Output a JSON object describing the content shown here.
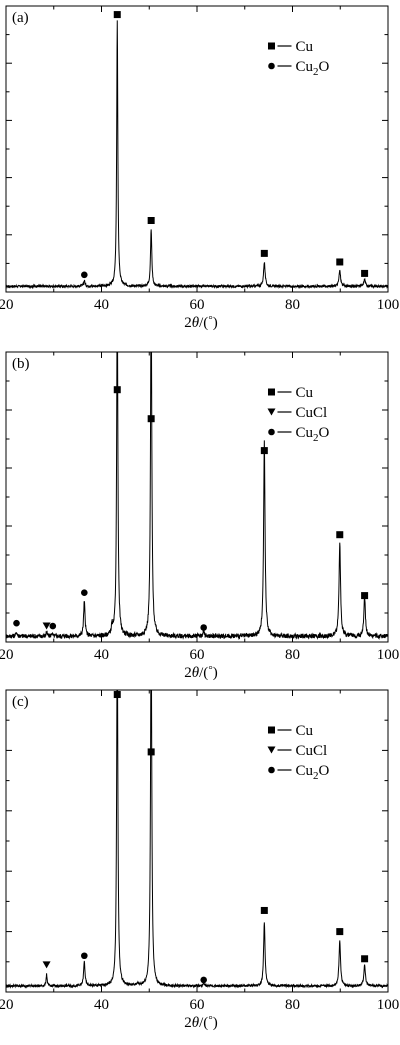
{
  "figure": {
    "colors": {
      "line": "#000000",
      "background": "#ffffff"
    }
  },
  "chart_data": [
    {
      "type": "line",
      "panel_label": "(a)",
      "xlabel": "2θ/(°)",
      "xlabel_parts": {
        "pre": "2",
        "theta": "θ",
        "post": "/(",
        "deg": "°",
        "close": ")"
      },
      "xlim": [
        20,
        100
      ],
      "xticks": [
        "20",
        "40",
        "60",
        "80",
        "100"
      ],
      "ylim": [
        0,
        1
      ],
      "y_axis_labeled": false,
      "grid": false,
      "legend": {
        "placement": "top-right",
        "entries": [
          {
            "marker": "square",
            "label": "Cu",
            "base": "Cu",
            "sub": ""
          },
          {
            "marker": "circle",
            "label": "Cu2O",
            "base": "Cu",
            "sub": "2",
            "tail": "O"
          }
        ]
      },
      "series": [
        {
          "baseline": 0.02,
          "noise": 0.004,
          "peaks": [
            {
              "x": 36.4,
              "h": 0.02,
              "w": 0.35
            },
            {
              "x": 43.3,
              "h": 0.93,
              "w": 0.28
            },
            {
              "x": 50.4,
              "h": 0.2,
              "w": 0.32
            },
            {
              "x": 74.1,
              "h": 0.085,
              "w": 0.38
            },
            {
              "x": 89.9,
              "h": 0.055,
              "w": 0.4
            },
            {
              "x": 95.1,
              "h": 0.025,
              "w": 0.4
            }
          ]
        }
      ],
      "markers": [
        {
          "x": 36.4,
          "y": 0.06,
          "phase": "Cu2O",
          "shape": "circle"
        },
        {
          "x": 43.3,
          "y": 0.97,
          "phase": "Cu",
          "shape": "square"
        },
        {
          "x": 50.4,
          "y": 0.25,
          "phase": "Cu",
          "shape": "square"
        },
        {
          "x": 74.1,
          "y": 0.135,
          "phase": "Cu",
          "shape": "square"
        },
        {
          "x": 89.9,
          "y": 0.105,
          "phase": "Cu",
          "shape": "square"
        },
        {
          "x": 95.1,
          "y": 0.065,
          "phase": "Cu",
          "shape": "square"
        }
      ]
    },
    {
      "type": "line",
      "panel_label": "(b)",
      "xlabel": "2θ/(°)",
      "xlabel_parts": {
        "pre": "2",
        "theta": "θ",
        "post": "/(",
        "deg": "°",
        "close": ")"
      },
      "xlim": [
        20,
        100
      ],
      "xticks": [
        "20",
        "40",
        "60",
        "80",
        "100"
      ],
      "ylim": [
        0,
        1
      ],
      "y_axis_labeled": false,
      "grid": false,
      "legend": {
        "placement": "top-right",
        "entries": [
          {
            "marker": "square",
            "label": "Cu",
            "base": "Cu",
            "sub": ""
          },
          {
            "marker": "triangle-down",
            "label": "CuCl",
            "base": "CuCl",
            "sub": ""
          },
          {
            "marker": "circle",
            "label": "Cu2O",
            "base": "Cu",
            "sub": "2",
            "tail": "O"
          }
        ]
      },
      "series": [
        {
          "baseline": 0.02,
          "noise": 0.008,
          "peaks": [
            {
              "x": 22.2,
              "h": 0.015,
              "w": 0.3
            },
            {
              "x": 28.5,
              "h": 0.015,
              "w": 0.25
            },
            {
              "x": 29.6,
              "h": 0.012,
              "w": 0.25
            },
            {
              "x": 36.4,
              "h": 0.12,
              "w": 0.35
            },
            {
              "x": 42.2,
              "h": 0.03,
              "w": 0.3
            },
            {
              "x": 43.3,
              "h": 1.2,
              "w": 0.3
            },
            {
              "x": 50.4,
              "h": 1.2,
              "w": 0.32
            },
            {
              "x": 61.4,
              "h": 0.018,
              "w": 0.35
            },
            {
              "x": 74.1,
              "h": 0.67,
              "w": 0.36
            },
            {
              "x": 89.9,
              "h": 0.32,
              "w": 0.38
            },
            {
              "x": 95.1,
              "h": 0.14,
              "w": 0.38
            }
          ]
        }
      ],
      "markers": [
        {
          "x": 22.2,
          "y": 0.065,
          "phase": "Cu2O",
          "shape": "circle"
        },
        {
          "x": 28.5,
          "y": 0.055,
          "phase": "CuCl",
          "shape": "triangle-down"
        },
        {
          "x": 29.8,
          "y": 0.055,
          "phase": "Cu2O",
          "shape": "circle"
        },
        {
          "x": 36.4,
          "y": 0.17,
          "phase": "Cu2O",
          "shape": "circle"
        },
        {
          "x": 43.3,
          "y": 0.87,
          "phase": "Cu",
          "shape": "square"
        },
        {
          "x": 50.4,
          "y": 0.77,
          "phase": "Cu",
          "shape": "square"
        },
        {
          "x": 61.4,
          "y": 0.05,
          "phase": "Cu2O",
          "shape": "circle"
        },
        {
          "x": 74.1,
          "y": 0.66,
          "phase": "Cu",
          "shape": "square"
        },
        {
          "x": 89.9,
          "y": 0.37,
          "phase": "Cu",
          "shape": "square"
        },
        {
          "x": 95.1,
          "y": 0.16,
          "phase": "Cu",
          "shape": "square"
        }
      ]
    },
    {
      "type": "line",
      "panel_label": "(c)",
      "xlabel": "2θ/(°)",
      "xlabel_parts": {
        "pre": "2",
        "theta": "θ",
        "post": "/(",
        "deg": "°",
        "close": ")"
      },
      "xlim": [
        20,
        100
      ],
      "xticks": [
        "20",
        "40",
        "60",
        "80",
        "100"
      ],
      "ylim": [
        0,
        1
      ],
      "y_axis_labeled": false,
      "grid": false,
      "legend": {
        "placement": "top-right",
        "entries": [
          {
            "marker": "square",
            "label": "Cu",
            "base": "Cu",
            "sub": ""
          },
          {
            "marker": "triangle-down",
            "label": "CuCl",
            "base": "CuCl",
            "sub": ""
          },
          {
            "marker": "circle",
            "label": "Cu2O",
            "base": "Cu",
            "sub": "2",
            "tail": "O"
          }
        ]
      },
      "series": [
        {
          "baseline": 0.02,
          "noise": 0.004,
          "peaks": [
            {
              "x": 28.5,
              "h": 0.04,
              "w": 0.25
            },
            {
              "x": 36.4,
              "h": 0.08,
              "w": 0.35
            },
            {
              "x": 43.3,
              "h": 1.2,
              "w": 0.3
            },
            {
              "x": 47.5,
              "h": 0.008,
              "w": 0.3
            },
            {
              "x": 50.4,
              "h": 1.2,
              "w": 0.32
            },
            {
              "x": 61.4,
              "h": 0.008,
              "w": 0.35
            },
            {
              "x": 74.1,
              "h": 0.21,
              "w": 0.36
            },
            {
              "x": 89.9,
              "h": 0.15,
              "w": 0.38
            },
            {
              "x": 95.1,
              "h": 0.07,
              "w": 0.38
            }
          ]
        }
      ],
      "markers": [
        {
          "x": 28.5,
          "y": 0.09,
          "phase": "CuCl",
          "shape": "triangle-down"
        },
        {
          "x": 36.4,
          "y": 0.12,
          "phase": "Cu2O",
          "shape": "circle"
        },
        {
          "x": 43.3,
          "y": 0.985,
          "phase": "Cu",
          "shape": "square"
        },
        {
          "x": 50.4,
          "y": 0.795,
          "phase": "Cu",
          "shape": "square"
        },
        {
          "x": 61.4,
          "y": 0.04,
          "phase": "Cu2O",
          "shape": "circle"
        },
        {
          "x": 74.1,
          "y": 0.27,
          "phase": "Cu",
          "shape": "square"
        },
        {
          "x": 89.9,
          "y": 0.2,
          "phase": "Cu",
          "shape": "square"
        },
        {
          "x": 95.1,
          "y": 0.11,
          "phase": "Cu",
          "shape": "square"
        }
      ]
    }
  ]
}
